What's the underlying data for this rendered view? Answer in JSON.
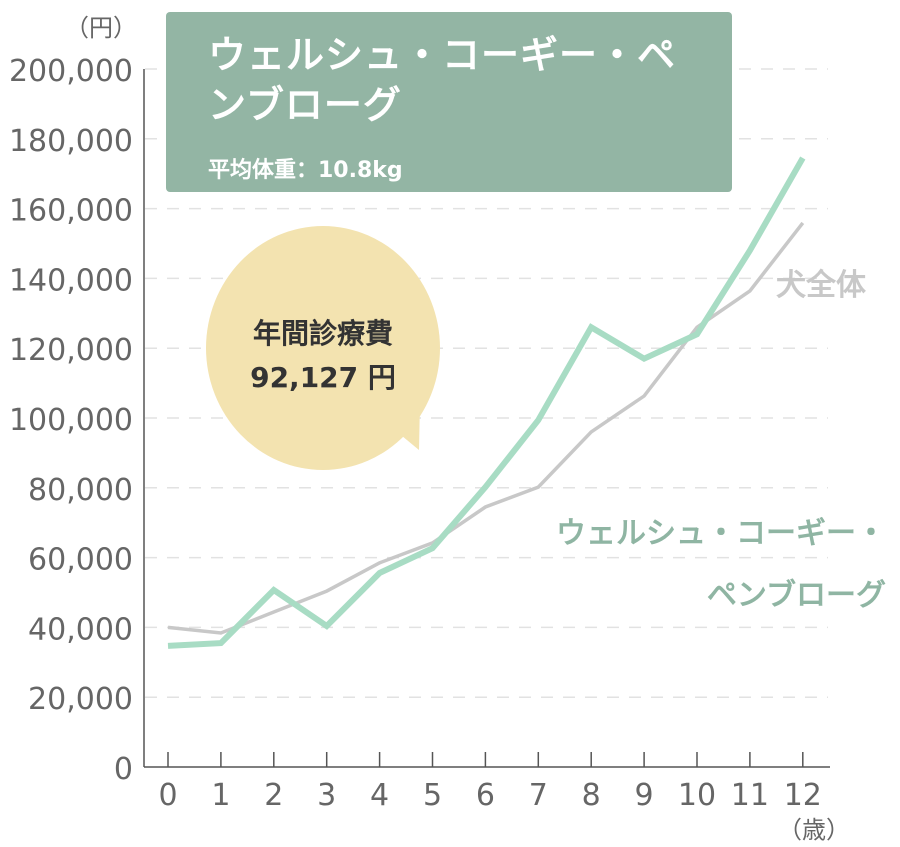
{
  "chart_data": {
    "type": "line",
    "title": "ウェルシュ・コーギー・ペンブローグ",
    "subtitle": "平均体重：10.8kg",
    "ylabel": "（円）",
    "xlabel": "（歳）",
    "x": [
      0,
      1,
      2,
      3,
      4,
      5,
      6,
      7,
      8,
      9,
      10,
      11,
      12
    ],
    "x_tick_labels": [
      "0",
      "1",
      "2",
      "3",
      "4",
      "5",
      "6",
      "7",
      "8",
      "9",
      "10",
      "11",
      "12"
    ],
    "ylim": [
      0,
      200000
    ],
    "y_tick_labels": [
      "0",
      "20,000",
      "40,000",
      "60,000",
      "80,000",
      "100,000",
      "120,000",
      "140,000",
      "160,000",
      "180,000",
      "200,000"
    ],
    "grid": true,
    "series": [
      {
        "name": "ウェルシュ・コーギー・ペンブローグ",
        "label_lines": [
          "ウェルシュ・コーギー・",
          "ペンブローグ"
        ],
        "color": "#a8dcc4",
        "values": [
          34700,
          35500,
          50700,
          40400,
          55600,
          62700,
          80200,
          99400,
          126000,
          117000,
          124000,
          148000,
          174500
        ]
      },
      {
        "name": "犬全体",
        "color": "#c8c8c8",
        "values": [
          40000,
          38400,
          44400,
          50400,
          58500,
          64200,
          74500,
          80200,
          96000,
          106300,
          126000,
          136400,
          155900
        ]
      }
    ],
    "annotation": {
      "line1": "年間診療費",
      "line2": "92,127 円",
      "color": "#f3e3b0"
    },
    "header_color": "#93b5a4",
    "label_color": "#8fb5a3"
  }
}
